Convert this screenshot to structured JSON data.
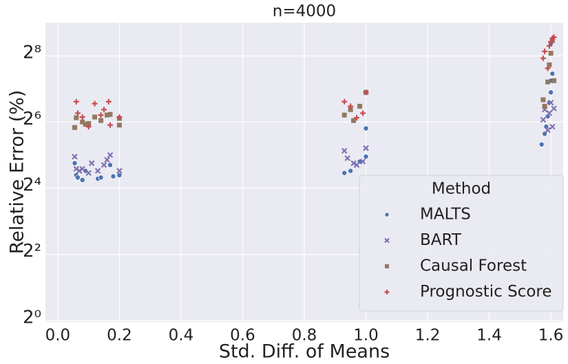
{
  "chart_data": {
    "type": "scatter",
    "title": "n=4000",
    "x_label": "Std. Diff. of Means",
    "y_label": "Relative Error (%)",
    "xlim": [
      -0.04,
      1.64
    ],
    "xticks": [
      {
        "value": 0,
        "label": "0.0"
      },
      0.2,
      0.4,
      0.6,
      0.8,
      {
        "value": 1,
        "label": "1.0"
      },
      1.2,
      1.4,
      1.6
    ],
    "ylim": [
      0.97,
      512
    ],
    "yticks": [
      {
        "value": 1,
        "label": "2⁰"
      },
      {
        "value": 4,
        "label": "2²"
      },
      {
        "value": 16,
        "label": "2⁴"
      },
      {
        "value": 64,
        "label": "2⁶"
      },
      {
        "value": 256,
        "label": "2⁸"
      }
    ],
    "y_log_base": 2,
    "grid": true,
    "legend_title": "Method",
    "legend_position": "lower right",
    "series": [
      {
        "name": "MALTS",
        "color": "#4c72b0",
        "marker": "o",
        "x": [
          0.055,
          0.06,
          0.065,
          0.08,
          0.09,
          0.13,
          0.14,
          0.17,
          0.18,
          0.2,
          0.93,
          0.95,
          0.98,
          1.0,
          1.0,
          1.57,
          1.58,
          1.585,
          1.59,
          1.595,
          1.6,
          1.6,
          1.605,
          1.6
        ],
        "values": [
          27,
          21,
          20,
          19,
          23,
          19.5,
          20,
          26,
          20.5,
          21,
          22,
          23,
          28,
          31,
          56,
          40,
          50,
          58,
          72,
          96,
          119,
          152,
          176,
          330
        ]
      },
      {
        "name": "BART",
        "color": "#8172b3",
        "marker": "x",
        "x": [
          0.055,
          0.06,
          0.07,
          0.08,
          0.1,
          0.11,
          0.13,
          0.15,
          0.16,
          0.17,
          0.2,
          0.93,
          0.94,
          0.96,
          0.97,
          0.99,
          1.0,
          1.575,
          1.58,
          1.59,
          1.595,
          1.6,
          1.605,
          1.61
        ],
        "values": [
          31,
          24,
          23,
          24,
          22,
          27,
          23,
          26,
          29,
          32,
          23,
          35,
          30,
          27,
          26,
          28,
          37,
          67,
          83,
          54,
          77,
          96,
          58,
          85
        ]
      },
      {
        "name": "Causal Forest",
        "color": "#937860",
        "marker": "s",
        "x": [
          0.055,
          0.06,
          0.08,
          0.09,
          0.1,
          0.12,
          0.14,
          0.16,
          0.17,
          0.2,
          0.2,
          0.93,
          0.95,
          0.96,
          0.98,
          1.0,
          1.575,
          1.58,
          1.59,
          1.595,
          1.6,
          1.605,
          1.61
        ],
        "values": [
          57,
          70,
          64,
          61,
          62,
          71,
          66,
          74,
          75,
          60,
          69,
          74,
          83,
          66,
          89,
          119,
          102,
          89,
          148,
          212,
          270,
          352,
          152
        ]
      },
      {
        "name": "Prognostic Score",
        "color": "#c44e52",
        "marker": "+",
        "x": [
          0.06,
          0.065,
          0.08,
          0.1,
          0.12,
          0.14,
          0.15,
          0.165,
          0.17,
          0.2,
          0.93,
          0.95,
          0.97,
          0.99,
          1.0,
          1.575,
          1.58,
          1.59,
          1.595,
          1.6,
          1.605,
          1.61
        ],
        "values": [
          98,
          77,
          71,
          58,
          94,
          74,
          83,
          98,
          60,
          71,
          98,
          89,
          70,
          77,
          119,
          243,
          281,
          197,
          315,
          344,
          370,
          378
        ]
      }
    ]
  }
}
